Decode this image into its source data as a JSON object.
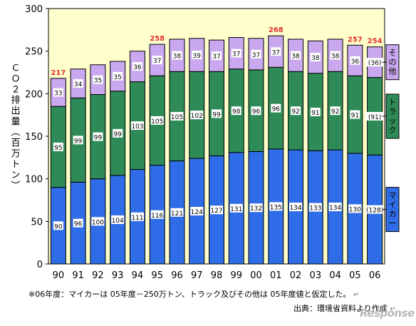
{
  "chart_data": {
    "type": "bar",
    "stacked": true,
    "ylabel": "ＣＯ２排出量（百万トン）",
    "ylim": [
      0,
      300
    ],
    "yticks": [
      0,
      50,
      100,
      150,
      200,
      250,
      300
    ],
    "categories": [
      "90",
      "91",
      "92",
      "93",
      "94",
      "95",
      "96",
      "97",
      "98",
      "99",
      "00",
      "01",
      "02",
      "03",
      "04",
      "05",
      "06"
    ],
    "series": [
      {
        "name": "マイカー",
        "color": "#2f6de8",
        "values": [
          90,
          96,
          100,
          104,
          111,
          116,
          121,
          124,
          127,
          131,
          132,
          135,
          134,
          133,
          134,
          130,
          128
        ],
        "labels": [
          "90",
          "96",
          "100",
          "104",
          "111",
          "116",
          "121",
          "124",
          "127",
          "131",
          "132",
          "135",
          "134",
          "133",
          "134",
          "130",
          "(128)"
        ]
      },
      {
        "name": "トラック",
        "color": "#2e8b57",
        "values": [
          95,
          99,
          99,
          99,
          103,
          105,
          105,
          102,
          99,
          98,
          96,
          96,
          92,
          91,
          92,
          91,
          91
        ],
        "labels": [
          "95",
          "99",
          "99",
          "99",
          "103",
          "105",
          "105",
          "102",
          "99",
          "98",
          "96",
          "96",
          "92",
          "91",
          "92",
          "91",
          "(91)"
        ]
      },
      {
        "name": "その他",
        "color": "#c9a8f0",
        "values": [
          33,
          34,
          35,
          35,
          36,
          37,
          38,
          39,
          37,
          37,
          37,
          37,
          38,
          38,
          38,
          36,
          36
        ],
        "labels": [
          "33",
          "34",
          "35",
          "35",
          "36",
          "37",
          "38",
          "39",
          "37",
          "37",
          "37",
          "37",
          "38",
          "38",
          "38",
          "36",
          "(36)"
        ]
      }
    ],
    "total_labels": [
      {
        "category": "90",
        "text": "217"
      },
      {
        "category": "95",
        "text": "258"
      },
      {
        "category": "01",
        "text": "268"
      },
      {
        "category": "05",
        "text": "257"
      },
      {
        "category": "06",
        "text": "254"
      }
    ],
    "grid": false,
    "legend_position": "right"
  },
  "footnote": "※06年度：マイカーは 05年度－250万トン、トラック及びその他は 05年度値と仮定した。",
  "source": "出典：環境省資料より作成",
  "watermark": "Response",
  "return_mark": "↵"
}
